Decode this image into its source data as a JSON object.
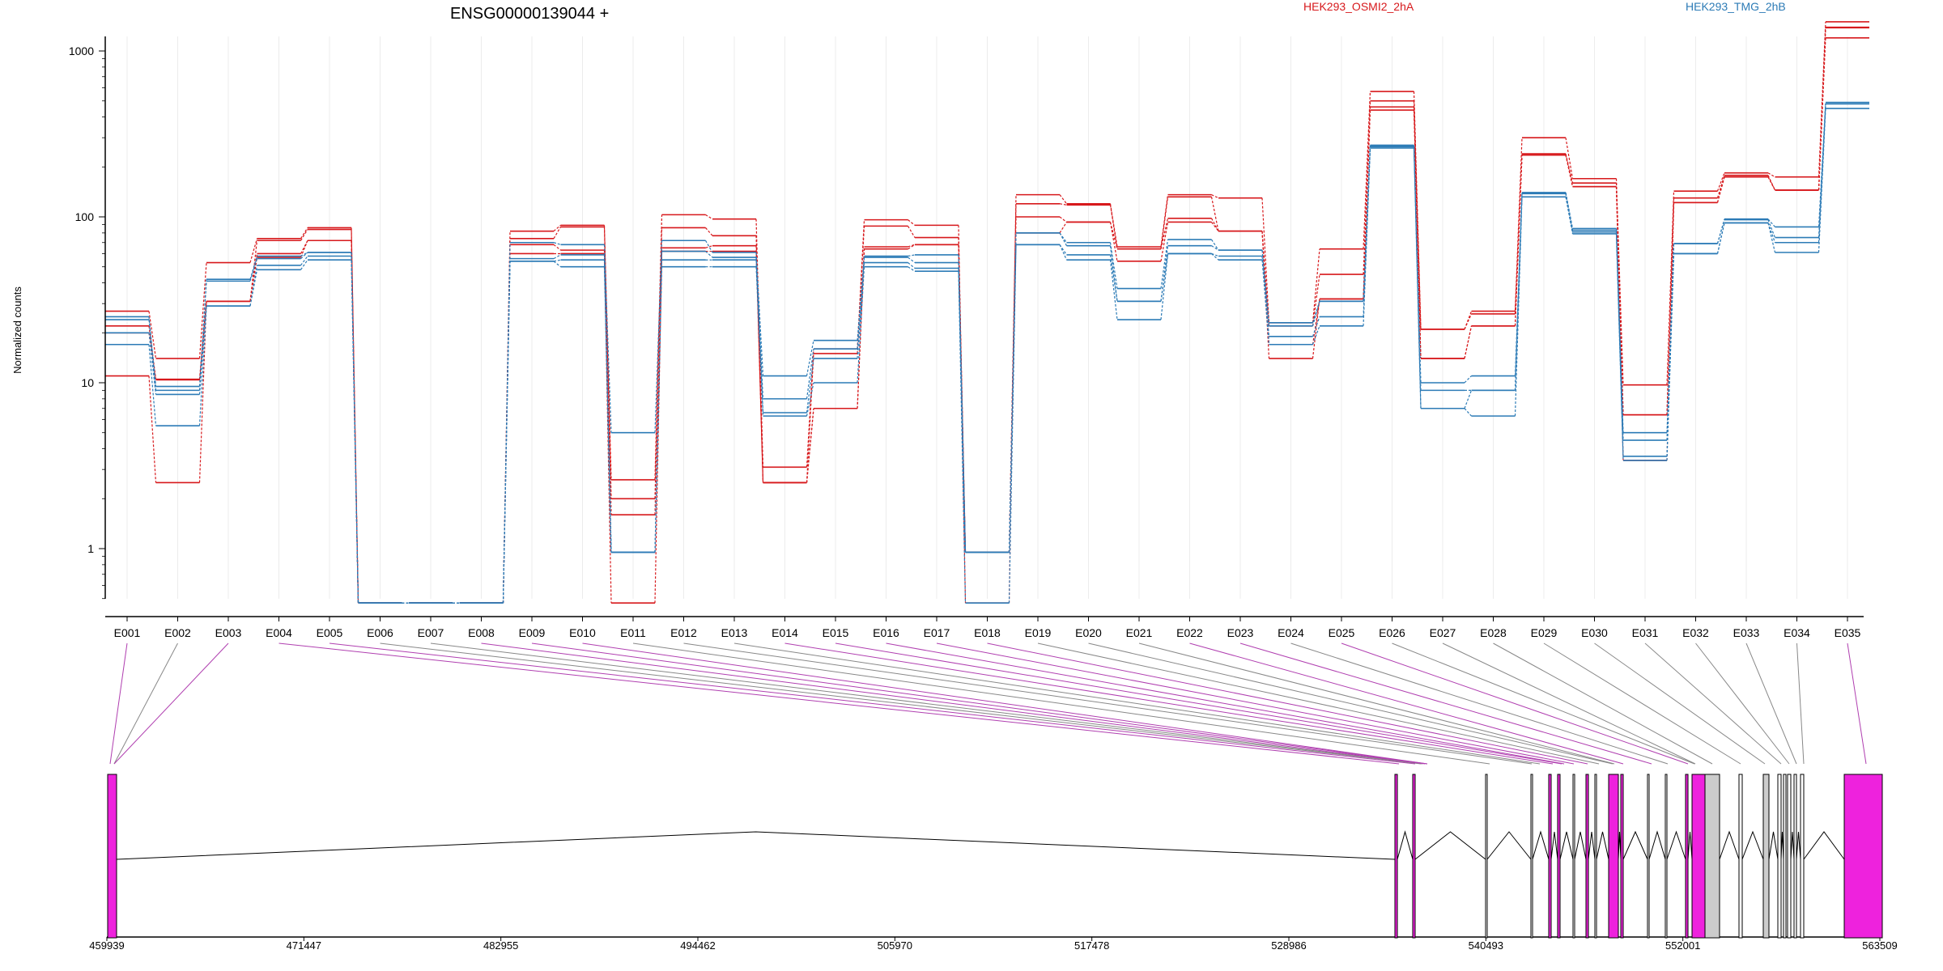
{
  "header": {
    "title": "ENSG00000139044 +",
    "legend": [
      {
        "label": "HEK293_OSMI2_2hA",
        "color": "#d7191c"
      },
      {
        "label": "HEK293_TMG_2hB",
        "color": "#2c7bb6"
      }
    ]
  },
  "chart_data": {
    "type": "line",
    "title": "ENSG00000139044 +",
    "xlabel": "",
    "ylabel": "Normalized counts",
    "y_scale": "log",
    "ylim": [
      0.5,
      2000
    ],
    "y_ticks": [
      "1",
      "10",
      "100",
      "1000"
    ],
    "grid": "vertical",
    "legend_position": "top",
    "categories": [
      "E001",
      "E002",
      "E003",
      "E004",
      "E005",
      "E006",
      "E007",
      "E008",
      "E009",
      "E010",
      "E011",
      "E012",
      "E013",
      "E014",
      "E015",
      "E016",
      "E017",
      "E018",
      "E019",
      "E020",
      "E021",
      "E022",
      "E023",
      "E024",
      "E025",
      "E026",
      "E027",
      "E028",
      "E029",
      "E030",
      "E031",
      "E032",
      "E033",
      "E034",
      "E035"
    ],
    "series": [
      {
        "group": "HEK293_OSMI2_2hA",
        "color": "#d7191c",
        "values": [
          27,
          14,
          53,
          74,
          86,
          0.47,
          0.47,
          0.47,
          82,
          89,
          2.6,
          103,
          97,
          3.1,
          16,
          96,
          89,
          0.47,
          136,
          120,
          66,
          136,
          130,
          23,
          64,
          570,
          21,
          27,
          300,
          170,
          9.7,
          143,
          184,
          174,
          1500
        ]
      },
      {
        "group": "HEK293_OSMI2_2hA",
        "color": "#d7191c",
        "values": [
          22,
          10.5,
          31,
          72,
          84,
          0.47,
          0.47,
          0.47,
          74,
          87,
          2,
          86,
          77,
          2.5,
          15,
          88,
          75,
          0.95,
          120,
          118,
          64,
          132,
          82,
          22,
          45,
          500,
          21,
          26,
          240,
          160,
          6.4,
          130,
          178,
          145,
          1380
        ]
      },
      {
        "group": "HEK293_OSMI2_2hA",
        "color": "#d7191c",
        "values": [
          20,
          10.4,
          31,
          60,
          72,
          0.47,
          0.47,
          0.47,
          68,
          63,
          1.6,
          65,
          67,
          2.5,
          7,
          66,
          68,
          0.95,
          100,
          93,
          64,
          98,
          82,
          17,
          32,
          460,
          14,
          22,
          236,
          152,
          6.4,
          122,
          174,
          145,
          1390
        ]
      },
      {
        "group": "HEK293_OSMI2_2hA",
        "color": "#d7191c",
        "values": [
          11,
          2.5,
          31,
          57,
          72,
          0.47,
          0.47,
          0.47,
          60,
          60,
          0.47,
          62,
          62,
          2.5,
          7,
          64,
          68,
          0.95,
          80,
          93,
          54,
          93,
          82,
          14,
          32,
          440,
          14,
          22,
          236,
          152,
          3.4,
          122,
          174,
          145,
          1200
        ]
      },
      {
        "group": "HEK293_TMG_2hB",
        "color": "#2c7bb6",
        "values": [
          25,
          9.5,
          42,
          58,
          61,
          0.47,
          0.47,
          0.47,
          70,
          68,
          5,
          72,
          61,
          11,
          18,
          58,
          59,
          0.95,
          80,
          70,
          37,
          73,
          63,
          23,
          31,
          270,
          10,
          11,
          140,
          85,
          5,
          69,
          97,
          87,
          490
        ]
      },
      {
        "group": "HEK293_TMG_2hB",
        "color": "#2c7bb6",
        "values": [
          24,
          9,
          41,
          56,
          61,
          0.47,
          0.47,
          0.47,
          56,
          59,
          0.95,
          62,
          57,
          8,
          16,
          57,
          53,
          0.95,
          80,
          67,
          31,
          67,
          63,
          22,
          31,
          270,
          9,
          9,
          140,
          83,
          4.5,
          69,
          96,
          75,
          480
        ]
      },
      {
        "group": "HEK293_TMG_2hB",
        "color": "#2c7bb6",
        "values": [
          20,
          8.5,
          29,
          51,
          58,
          0.47,
          0.47,
          0.47,
          54,
          55,
          0.95,
          55,
          55,
          6.6,
          14,
          53,
          49,
          0.95,
          68,
          59,
          31,
          60,
          58,
          19,
          25,
          265,
          7,
          9,
          138,
          81,
          3.6,
          60,
          92,
          70,
          480
        ]
      },
      {
        "group": "HEK293_TMG_2hB",
        "color": "#2c7bb6",
        "values": [
          17,
          5.5,
          29,
          48,
          55,
          0.47,
          0.47,
          0.47,
          54,
          50,
          0.95,
          50,
          50,
          6.3,
          10,
          50,
          47,
          0.47,
          68,
          55,
          24,
          60,
          55,
          17,
          22,
          260,
          7,
          6.3,
          132,
          79,
          3.4,
          60,
          92,
          61,
          450
        ]
      }
    ]
  },
  "gene_model": {
    "axis_ticks": [
      "459939",
      "471447",
      "482955",
      "494462",
      "505970",
      "517478",
      "528986",
      "540493",
      "552001",
      "563509"
    ],
    "exon_colors": {
      "highlight": "#ee22dd",
      "normal": "#ffffff",
      "grey": "#cccccc"
    }
  }
}
